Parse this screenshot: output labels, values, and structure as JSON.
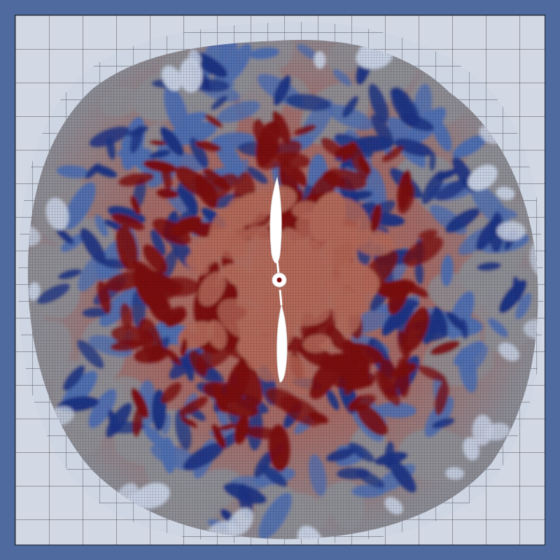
{
  "colors": {
    "frame": "#4e6a9e",
    "background_domain": "#d3d9e4",
    "light_region": "#c9d3e6",
    "mid_gray": "#8f8f96",
    "warm": "#b56a5a",
    "hot": "#7d0b0e",
    "cold": "#1c3486",
    "cool": "#4f6fb3",
    "grid_line": "#1a1a1a",
    "rotor": "#ffffff"
  },
  "icons": {
    "rotor_blade": "rotor-blade-icon",
    "rotor_hub": "rotor-hub-icon"
  }
}
